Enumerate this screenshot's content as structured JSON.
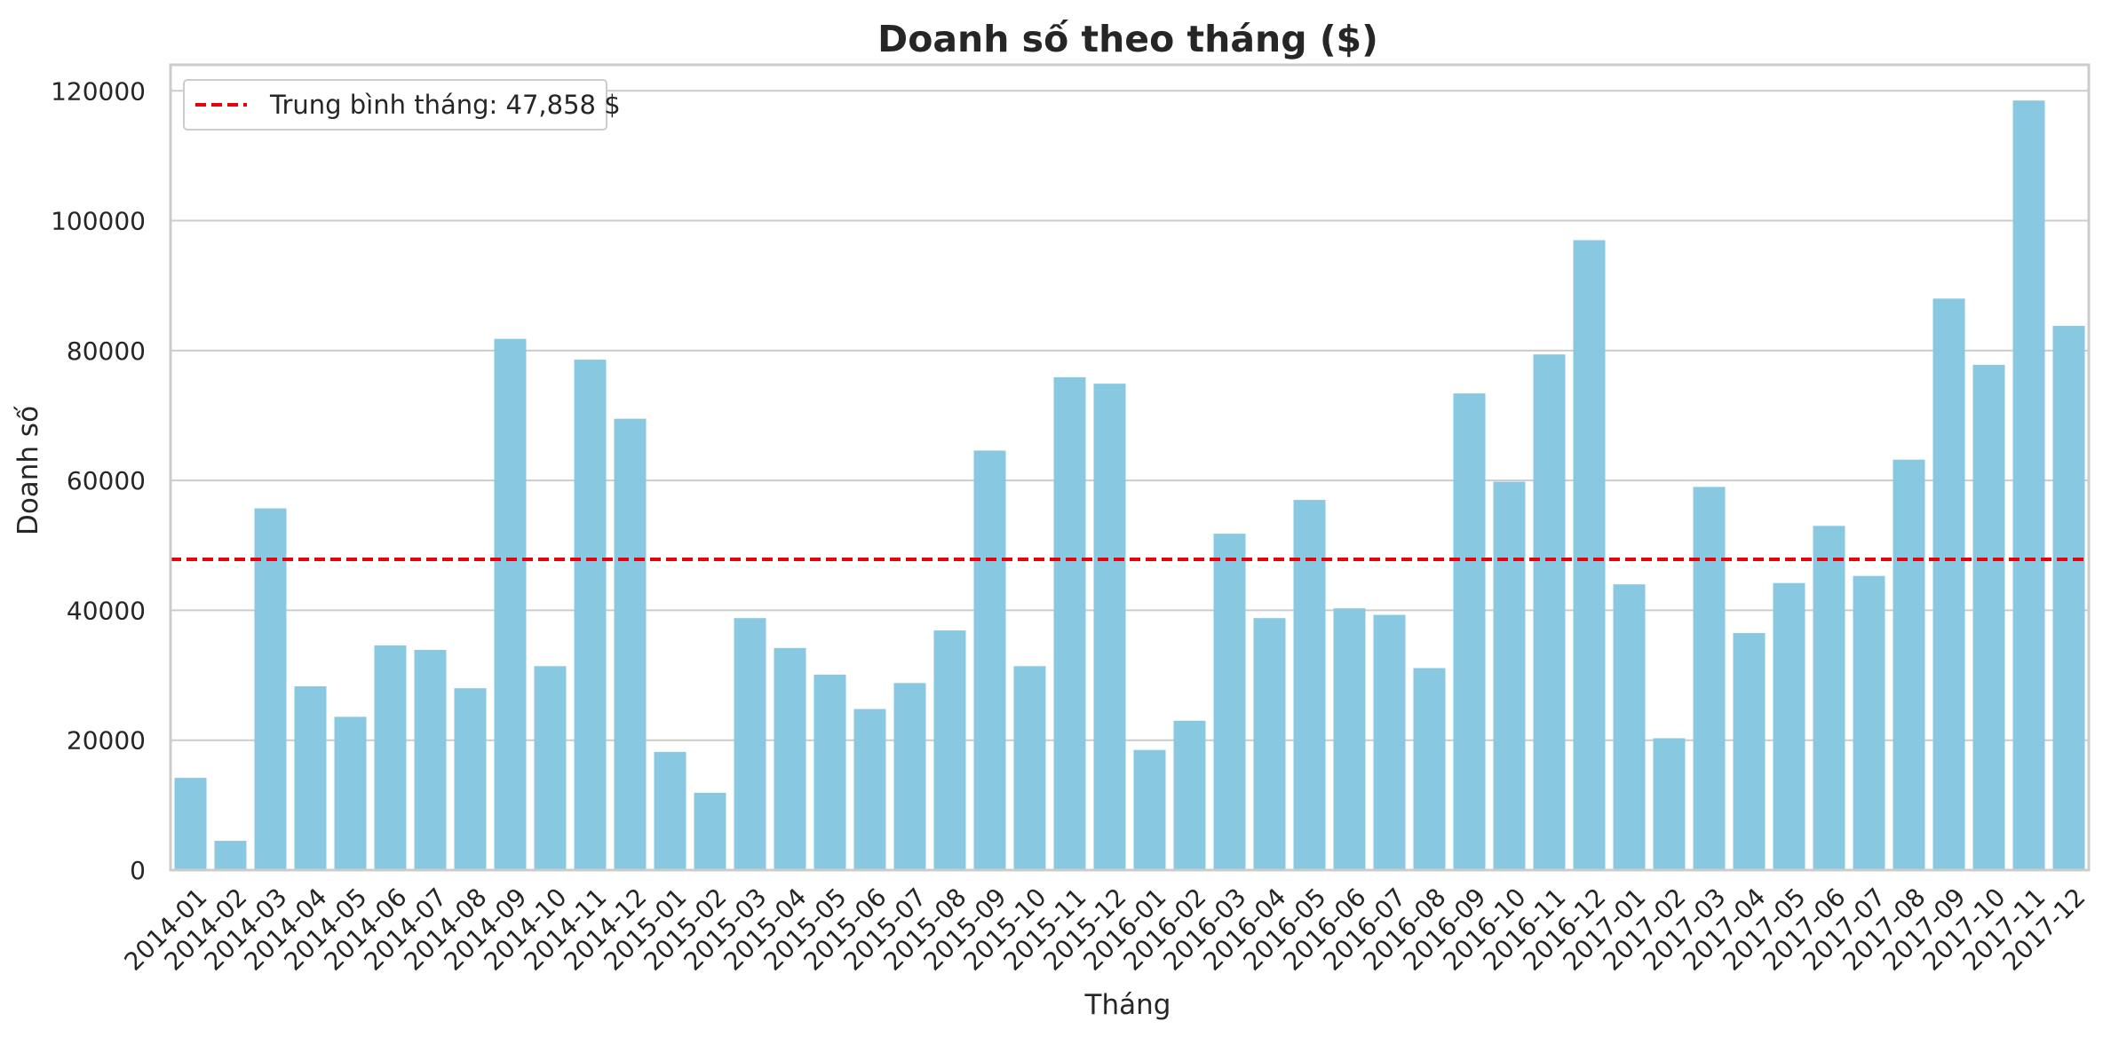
{
  "chart_data": {
    "type": "bar",
    "title": "Doanh số theo tháng ($)",
    "xlabel": "Tháng",
    "ylabel": "Doanh số",
    "ylim": [
      0,
      124000
    ],
    "yticks": [
      0,
      20000,
      40000,
      60000,
      80000,
      100000,
      120000
    ],
    "grid": "horizontal",
    "legend_placement": "top-left",
    "bar_color": "#89c8e1",
    "mean_line": {
      "value": 47858,
      "label": "Trung bình tháng: 47,858 $",
      "color": "#e8000b",
      "style": "dashed"
    },
    "categories": [
      "2014-01",
      "2014-02",
      "2014-03",
      "2014-04",
      "2014-05",
      "2014-06",
      "2014-07",
      "2014-08",
      "2014-09",
      "2014-10",
      "2014-11",
      "2014-12",
      "2015-01",
      "2015-02",
      "2015-03",
      "2015-04",
      "2015-05",
      "2015-06",
      "2015-07",
      "2015-08",
      "2015-09",
      "2015-10",
      "2015-11",
      "2015-12",
      "2016-01",
      "2016-02",
      "2016-03",
      "2016-04",
      "2016-05",
      "2016-06",
      "2016-07",
      "2016-08",
      "2016-09",
      "2016-10",
      "2016-11",
      "2016-12",
      "2017-01",
      "2017-02",
      "2017-03",
      "2017-04",
      "2017-05",
      "2017-06",
      "2017-07",
      "2017-08",
      "2017-09",
      "2017-10",
      "2017-11",
      "2017-12"
    ],
    "values": [
      14200,
      4500,
      55700,
      28300,
      23600,
      34600,
      33900,
      28000,
      81800,
      31400,
      78600,
      69500,
      18200,
      11900,
      38800,
      34200,
      30100,
      24800,
      28800,
      36900,
      64600,
      31400,
      75900,
      74900,
      18500,
      23000,
      51800,
      38800,
      57000,
      40300,
      39300,
      31100,
      73400,
      59800,
      79400,
      97000,
      44000,
      20300,
      59000,
      36500,
      44200,
      53000,
      45300,
      63200,
      88000,
      77800,
      118500,
      83800
    ]
  }
}
